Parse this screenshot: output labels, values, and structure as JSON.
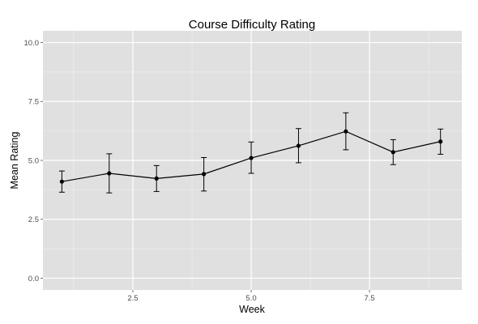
{
  "chart_data": {
    "type": "line",
    "title": "Course Difficulty Rating",
    "xlabel": "Week",
    "ylabel": "Mean Rating",
    "xlim": [
      0.6,
      9.45
    ],
    "ylim": [
      -0.5,
      10.5
    ],
    "x_ticks": [
      2.5,
      5.0,
      7.5
    ],
    "x_tick_labels": [
      "2.5",
      "5.0",
      "7.5"
    ],
    "x_minor": [
      1.25,
      3.75,
      6.25,
      8.75
    ],
    "y_ticks": [
      0,
      2.5,
      5,
      7.5,
      10
    ],
    "y_tick_labels": [
      "0.0",
      "2.5",
      "5.0",
      "7.5",
      "10.0"
    ],
    "y_minor": [
      1.25,
      3.75,
      6.25,
      8.75
    ],
    "grid": true,
    "panel_background": "#e0e0e0",
    "grid_color": "#ffffff",
    "series": [
      {
        "x": [
          1,
          2,
          3,
          4,
          5,
          6,
          7,
          8,
          9
        ],
        "y": [
          4.1,
          4.45,
          4.23,
          4.42,
          5.1,
          5.62,
          6.23,
          5.35,
          5.8
        ],
        "ymin": [
          3.65,
          3.62,
          3.68,
          3.7,
          4.45,
          4.9,
          5.45,
          4.82,
          5.26
        ],
        "ymax": [
          4.55,
          5.28,
          4.78,
          5.12,
          5.78,
          6.35,
          7.02,
          5.88,
          6.33
        ]
      }
    ]
  }
}
